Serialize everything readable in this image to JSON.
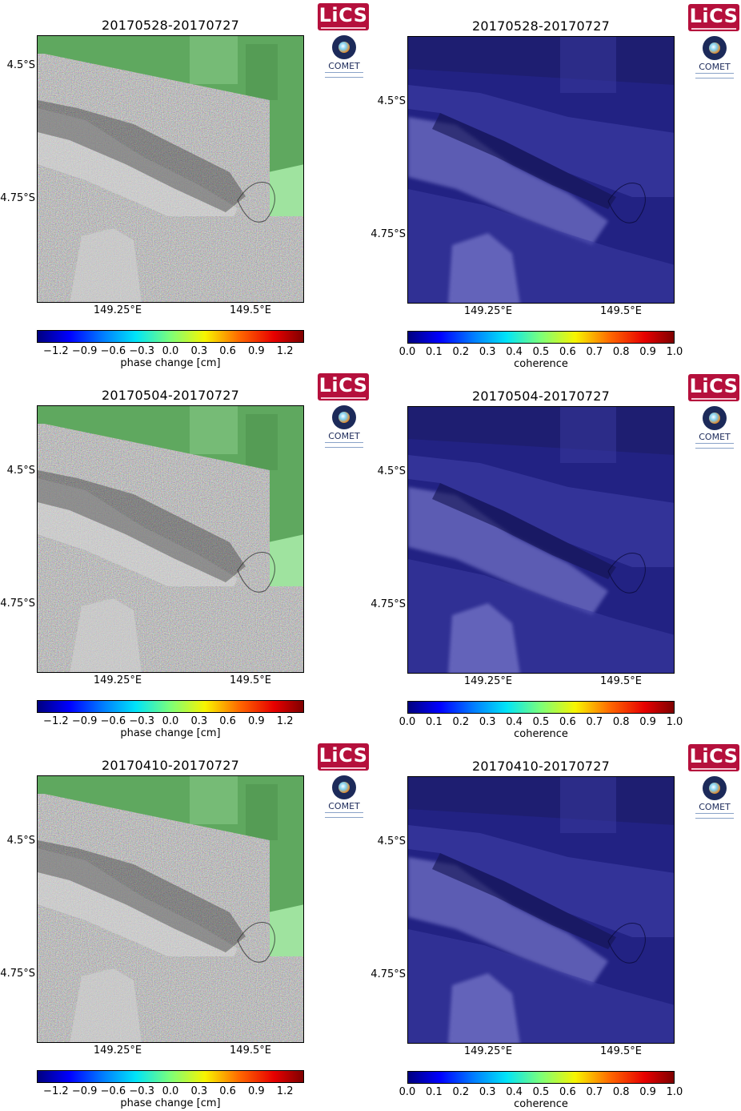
{
  "logos": {
    "lics": "LiCS",
    "comet": "COMET"
  },
  "colors": {
    "deformation_land": "#6bb86b",
    "coherence_base": "#21217a",
    "frame": "#000000"
  },
  "axes": {
    "lat_ticks": [
      "4.5°S",
      "4.75°S"
    ],
    "lon_ticks": [
      "149.25°E",
      "149.5°E"
    ]
  },
  "colorbars": {
    "phase": {
      "label": "phase change [cm]",
      "ticks": [
        "−1.2",
        "−0.9",
        "−0.6",
        "−0.3",
        "0.0",
        "0.3",
        "0.6",
        "0.9",
        "1.2"
      ],
      "range": [
        -1.4,
        1.4
      ],
      "tick_values": [
        -1.2,
        -0.9,
        -0.6,
        -0.3,
        0.0,
        0.3,
        0.6,
        0.9,
        1.2
      ]
    },
    "coherence": {
      "label": "coherence",
      "ticks": [
        "0.0",
        "0.1",
        "0.2",
        "0.3",
        "0.4",
        "0.5",
        "0.6",
        "0.7",
        "0.8",
        "0.9",
        "1.0"
      ],
      "range": [
        0,
        1
      ],
      "tick_values": [
        0.0,
        0.1,
        0.2,
        0.3,
        0.4,
        0.5,
        0.6,
        0.7,
        0.8,
        0.9,
        1.0
      ]
    }
  },
  "rows": [
    {
      "title": "20170528-20170727"
    },
    {
      "title": "20170504-20170727"
    },
    {
      "title": "20170410-20170727"
    }
  ]
}
